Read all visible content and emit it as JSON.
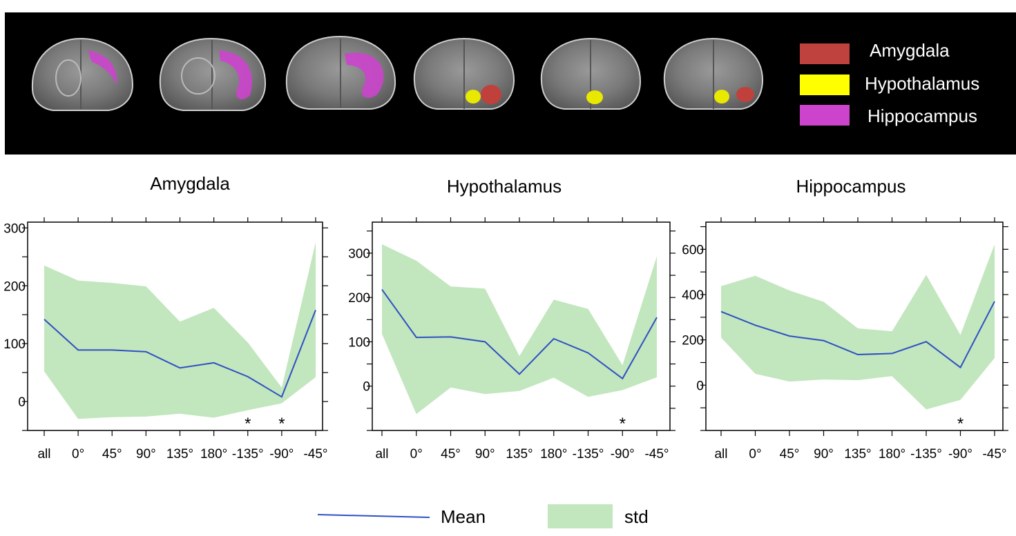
{
  "legend": {
    "items": [
      {
        "label": "Amygdala",
        "color": "#c0423f"
      },
      {
        "label": "Hypothalamus",
        "color": "#ffff00"
      },
      {
        "label": "Hippocampus",
        "color": "#cc44cc"
      }
    ]
  },
  "bottom_legend": {
    "mean_label": "Mean",
    "std_label": "std",
    "mean_color": "#2e4fc4",
    "std_color": "#c2e6bd"
  },
  "chart_data": [
    {
      "type": "line",
      "title": "Amygdala",
      "categories": [
        "all",
        "0°",
        "45°",
        "90°",
        "135°",
        "180°",
        "-135°",
        "-90°",
        "-45°"
      ],
      "series": [
        {
          "name": "Mean",
          "values": [
            142,
            89,
            89,
            86,
            58,
            67,
            43,
            8,
            158
          ]
        },
        {
          "name": "std_upper",
          "values": [
            235,
            209,
            205,
            199,
            138,
            162,
            102,
            24,
            275
          ]
        },
        {
          "name": "std_lower",
          "values": [
            52,
            -30,
            -27,
            -26,
            -21,
            -28,
            -15,
            -3,
            42
          ]
        }
      ],
      "yticks": [
        0,
        100,
        200,
        300
      ],
      "ylim": [
        -50,
        310
      ],
      "significant": [
        "-135°",
        "-90°"
      ]
    },
    {
      "type": "line",
      "title": "Hypothalamus",
      "categories": [
        "all",
        "0°",
        "45°",
        "90°",
        "135°",
        "180°",
        "-135°",
        "-90°",
        "-45°"
      ],
      "series": [
        {
          "name": "Mean",
          "values": [
            218,
            110,
            111,
            100,
            27,
            107,
            75,
            17,
            155
          ]
        },
        {
          "name": "std_upper",
          "values": [
            320,
            283,
            225,
            220,
            68,
            195,
            174,
            47,
            293
          ]
        },
        {
          "name": "std_lower",
          "values": [
            118,
            -63,
            -3,
            -18,
            -11,
            19,
            -24,
            -9,
            20
          ]
        }
      ],
      "yticks": [
        0,
        100,
        200,
        300
      ],
      "ylim": [
        -100,
        370
      ],
      "significant": [
        "-90°"
      ]
    },
    {
      "type": "line",
      "title": "Hippocampus",
      "categories": [
        "all",
        "0°",
        "45°",
        "90°",
        "135°",
        "180°",
        "-135°",
        "-90°",
        "-45°"
      ],
      "series": [
        {
          "name": "Mean",
          "values": [
            325,
            265,
            217,
            197,
            135,
            140,
            192,
            78,
            370
          ]
        },
        {
          "name": "std_upper",
          "values": [
            437,
            483,
            418,
            368,
            251,
            238,
            487,
            222,
            622
          ]
        },
        {
          "name": "std_lower",
          "values": [
            210,
            50,
            16,
            25,
            22,
            40,
            -107,
            -65,
            120
          ]
        }
      ],
      "yticks": [
        0,
        200,
        400,
        600
      ],
      "ylim": [
        -200,
        720
      ],
      "significant": [
        "-90°"
      ]
    }
  ]
}
